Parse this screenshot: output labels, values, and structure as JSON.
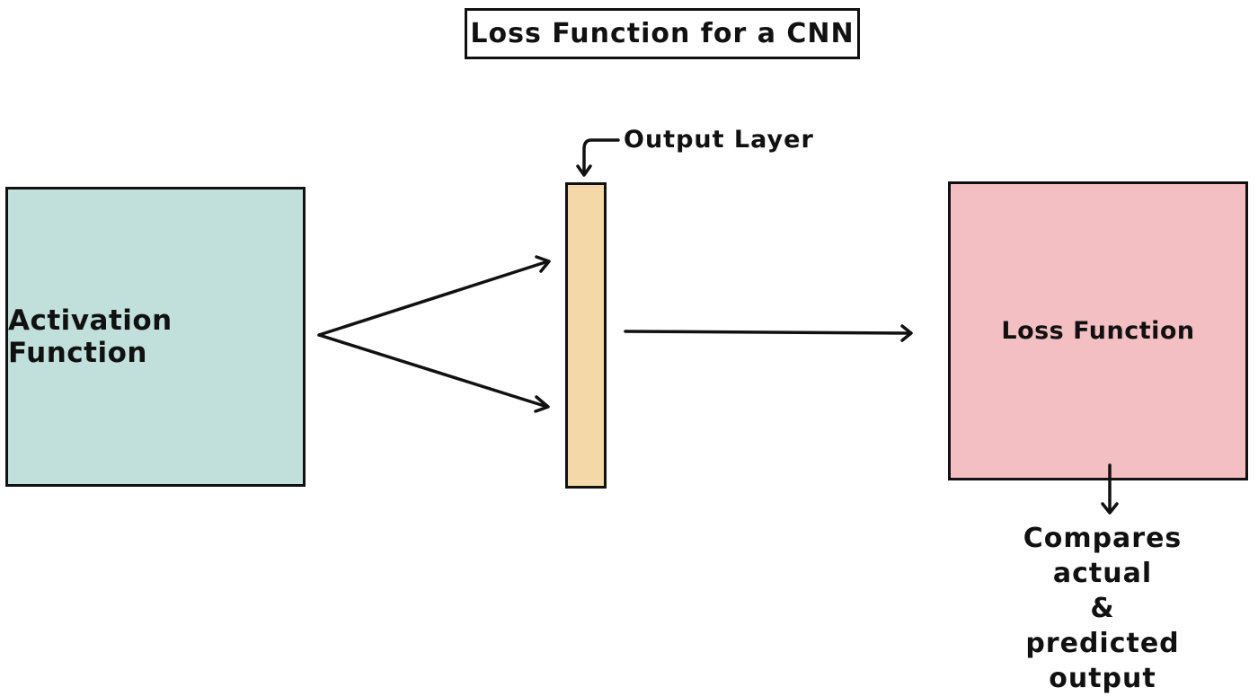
{
  "title": "Loss Function for a CNN",
  "colors": {
    "activation_fill": "#c1e0db",
    "output_layer_fill": "#f4d8a8",
    "loss_fill": "#f4bfc2",
    "stroke": "#111111"
  },
  "nodes": {
    "activation": {
      "label": "Activation Function"
    },
    "output_layer": {
      "label": "Output Layer"
    },
    "loss": {
      "label": "Loss Function"
    }
  },
  "note": {
    "line1": "Compares actual",
    "line2": "&",
    "line3": "predicted output"
  }
}
